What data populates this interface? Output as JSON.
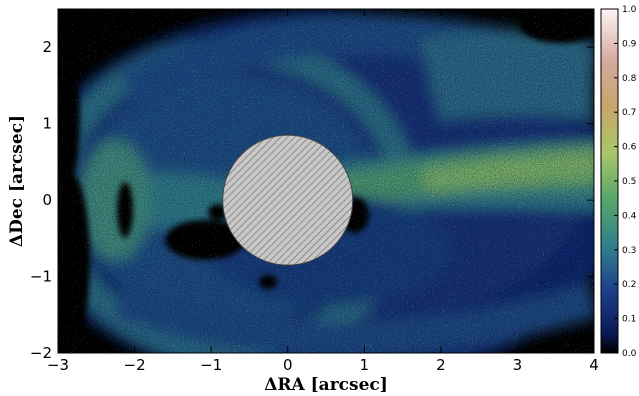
{
  "chart_data": {
    "type": "heatmap",
    "title": "",
    "xlabel": "ΔRA [arcsec]",
    "ylabel": "ΔDec [arcsec]",
    "xlim": [
      -3,
      4
    ],
    "ylim": [
      -2,
      2.5
    ],
    "x_ticks": [
      -3,
      -2,
      -1,
      0,
      1,
      2,
      3,
      4
    ],
    "x_tick_labels": [
      "−3",
      "−2",
      "−1",
      "0",
      "1",
      "2",
      "3",
      "4"
    ],
    "y_ticks": [
      -2,
      -1,
      0,
      1,
      2
    ],
    "y_tick_labels": [
      "−2",
      "−1",
      "0",
      "1",
      "2"
    ],
    "colorbar": {
      "range": [
        0,
        1
      ],
      "ticks": [
        0.0,
        0.1,
        0.2,
        0.3,
        0.4,
        0.5,
        0.6,
        0.7,
        0.8,
        0.9,
        1.0
      ],
      "tick_labels": [
        "0.0",
        "0.1",
        "0.2",
        "0.3",
        "0.4",
        "0.5",
        "0.6",
        "0.7",
        "0.8",
        "0.9",
        "1.0"
      ]
    },
    "mask": {
      "center": [
        0,
        0
      ],
      "radius": 0.85,
      "pattern": "hatched"
    },
    "grid": false
  },
  "colors": {
    "deep_navy": "#0b1a57",
    "blue": "#1d3f8a",
    "teal": "#2f7b8e",
    "green": "#58a86a",
    "yellow_green": "#a9c66a",
    "tan": "#c9a46a",
    "pink": "#ecd3d3",
    "mask_fill": "#c7c7c7",
    "background": "#000000"
  }
}
